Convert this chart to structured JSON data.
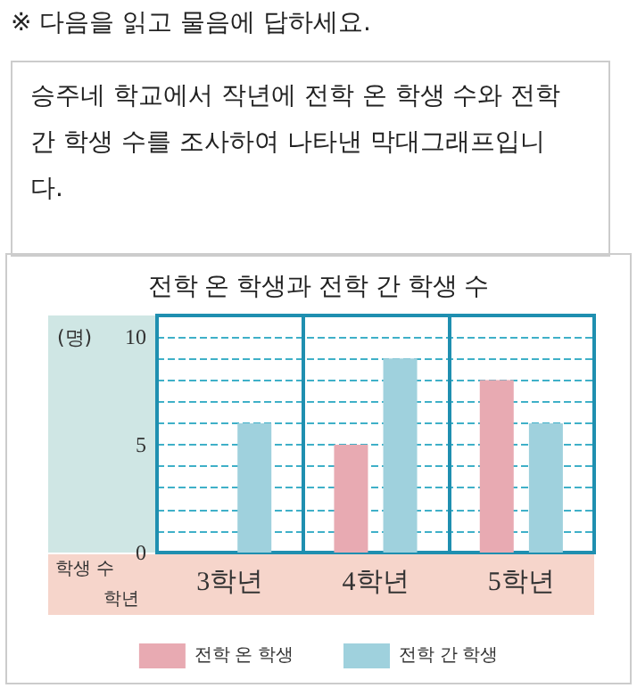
{
  "chart_data": {
    "type": "bar",
    "title": "전학 온 학생과 전학 간 학생 수",
    "xlabel": "학년",
    "ylabel": "학생 수",
    "annotations": [
      "※ 다음을 읽고 물음에 답하세요.",
      "승주네 학교에서 작년에 전학 온 학생 수와 전학 간 학생 수를 조사하여 나타낸 막대그래프입니다.",
      "(명)"
    ],
    "categories": [
      "3학년",
      "4학년",
      "5학년"
    ],
    "series": [
      {
        "name": "전학 온 학생",
        "color": "#e8aab2",
        "values": [
          0,
          5,
          8
        ]
      },
      {
        "name": "전학 간 학생",
        "color": "#9fd1dd",
        "values": [
          6,
          9,
          6
        ]
      }
    ],
    "ylim": [
      0,
      11
    ],
    "yticks": [
      0,
      {
        "value": 1,
        "label": null
      },
      {
        "value": 2,
        "label": null
      },
      {
        "value": 3,
        "label": null
      },
      {
        "value": 4,
        "label": null
      },
      5,
      {
        "value": 6,
        "label": null
      },
      {
        "value": 7,
        "label": null
      },
      {
        "value": 8,
        "label": null
      },
      {
        "value": 9,
        "label": null
      },
      10
    ],
    "grid": "y",
    "legend": "bottom"
  }
}
